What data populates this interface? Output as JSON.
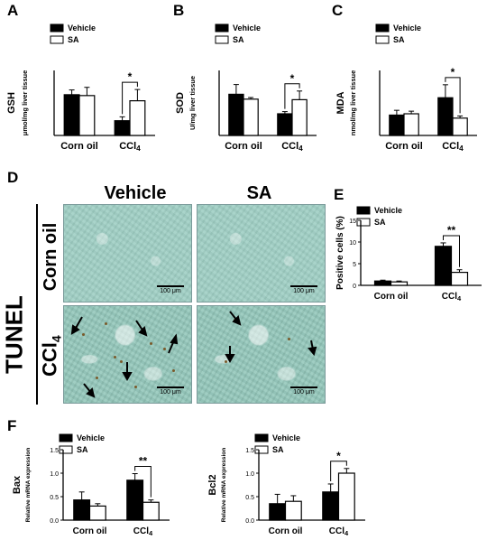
{
  "figure": {
    "panels": {
      "A": "A",
      "B": "B",
      "C": "C",
      "D": "D",
      "E": "E",
      "F": "F"
    },
    "tunel": {
      "stain_label": "TUNEL",
      "col_vehicle": "Vehicle",
      "col_sa": "SA",
      "row_corn_oil": "Corn oil",
      "row_ccl4_main": "CCl",
      "row_ccl4_sub": "4",
      "scale_label": "100 μm"
    },
    "colors": {
      "vehicle": "#000000",
      "sa": "#ffffff",
      "tissue": "#9fcfc4",
      "tunel_dot": "#7a5a2a"
    }
  },
  "chart_data": [
    {
      "panel": "A",
      "type": "bar",
      "categories": [
        "Corn oil",
        "CCl4"
      ],
      "series": [
        {
          "name": "Vehicle",
          "values": [
            9.4,
            3.4
          ],
          "errors": [
            1.1,
            0.9
          ]
        },
        {
          "name": "SA",
          "values": [
            9.2,
            8.0
          ],
          "errors": [
            1.9,
            2.6
          ]
        }
      ],
      "ylabel": "GSH",
      "ylabel2": "μmol/mg liver tissue",
      "ylim": [
        0,
        15
      ],
      "significance": [
        {
          "category": 1,
          "mark": "*"
        }
      ],
      "legend": "top-left"
    },
    {
      "panel": "B",
      "type": "bar",
      "categories": [
        "Corn oil",
        "CCl4"
      ],
      "series": [
        {
          "name": "Vehicle",
          "values": [
            38,
            20
          ],
          "errors": [
            9,
            2
          ]
        },
        {
          "name": "SA",
          "values": [
            33.5,
            33
          ],
          "errors": [
            1.5,
            8
          ]
        }
      ],
      "ylabel": "SOD",
      "ylabel2": "U/mg liver tissue",
      "ylim": [
        0,
        60
      ],
      "significance": [
        {
          "category": 1,
          "mark": "*"
        }
      ],
      "legend": "top-left"
    },
    {
      "panel": "C",
      "type": "bar",
      "categories": [
        "Corn oil",
        "CCl4"
      ],
      "series": [
        {
          "name": "Vehicle",
          "values": [
            47,
            87
          ],
          "errors": [
            11,
            30
          ]
        },
        {
          "name": "SA",
          "values": [
            50,
            40
          ],
          "errors": [
            6,
            5
          ]
        }
      ],
      "ylabel": "MDA",
      "ylabel2": "nmol/mg liver tissue",
      "ylim": [
        0,
        150
      ],
      "significance": [
        {
          "category": 1,
          "mark": "*"
        }
      ],
      "legend": "top-left"
    },
    {
      "panel": "E",
      "type": "bar",
      "categories": [
        "Corn oil",
        "CCl4"
      ],
      "series": [
        {
          "name": "Vehicle",
          "values": [
            1.0,
            9.0
          ],
          "errors": [
            0.2,
            0.8
          ]
        },
        {
          "name": "SA",
          "values": [
            0.8,
            3.0
          ],
          "errors": [
            0.2,
            0.6
          ]
        }
      ],
      "ylabel": "Positive cells (%)",
      "ylabel2": "",
      "yticks": [
        0,
        5,
        10,
        15
      ],
      "ylim": [
        0,
        15
      ],
      "significance": [
        {
          "category": 1,
          "mark": "**"
        }
      ],
      "legend": "top-left"
    },
    {
      "panel": "F1",
      "type": "bar",
      "categories": [
        "Corn oil",
        "CCl4"
      ],
      "series": [
        {
          "name": "Vehicle",
          "values": [
            0.43,
            0.85
          ],
          "errors": [
            0.17,
            0.14
          ]
        },
        {
          "name": "SA",
          "values": [
            0.3,
            0.38
          ],
          "errors": [
            0.05,
            0.05
          ]
        }
      ],
      "ylabel": "Bax",
      "ylabel2": "Relative mRNA expression",
      "yticks": [
        0.0,
        0.5,
        1.0,
        1.5
      ],
      "ylim": [
        0,
        1.5
      ],
      "significance": [
        {
          "category": 1,
          "mark": "**"
        }
      ],
      "legend": "top-left"
    },
    {
      "panel": "F2",
      "type": "bar",
      "categories": [
        "Corn oil",
        "CCl4"
      ],
      "series": [
        {
          "name": "Vehicle",
          "values": [
            0.35,
            0.6
          ],
          "errors": [
            0.2,
            0.17
          ]
        },
        {
          "name": "SA",
          "values": [
            0.4,
            1.0
          ],
          "errors": [
            0.12,
            0.1
          ]
        }
      ],
      "ylabel": "Bcl2",
      "ylabel2": "Relative mRNA expression",
      "yticks": [
        0.0,
        0.5,
        1.0,
        1.5
      ],
      "ylim": [
        0,
        1.5
      ],
      "significance": [
        {
          "category": 1,
          "mark": "*"
        }
      ],
      "legend": "top-left"
    }
  ]
}
